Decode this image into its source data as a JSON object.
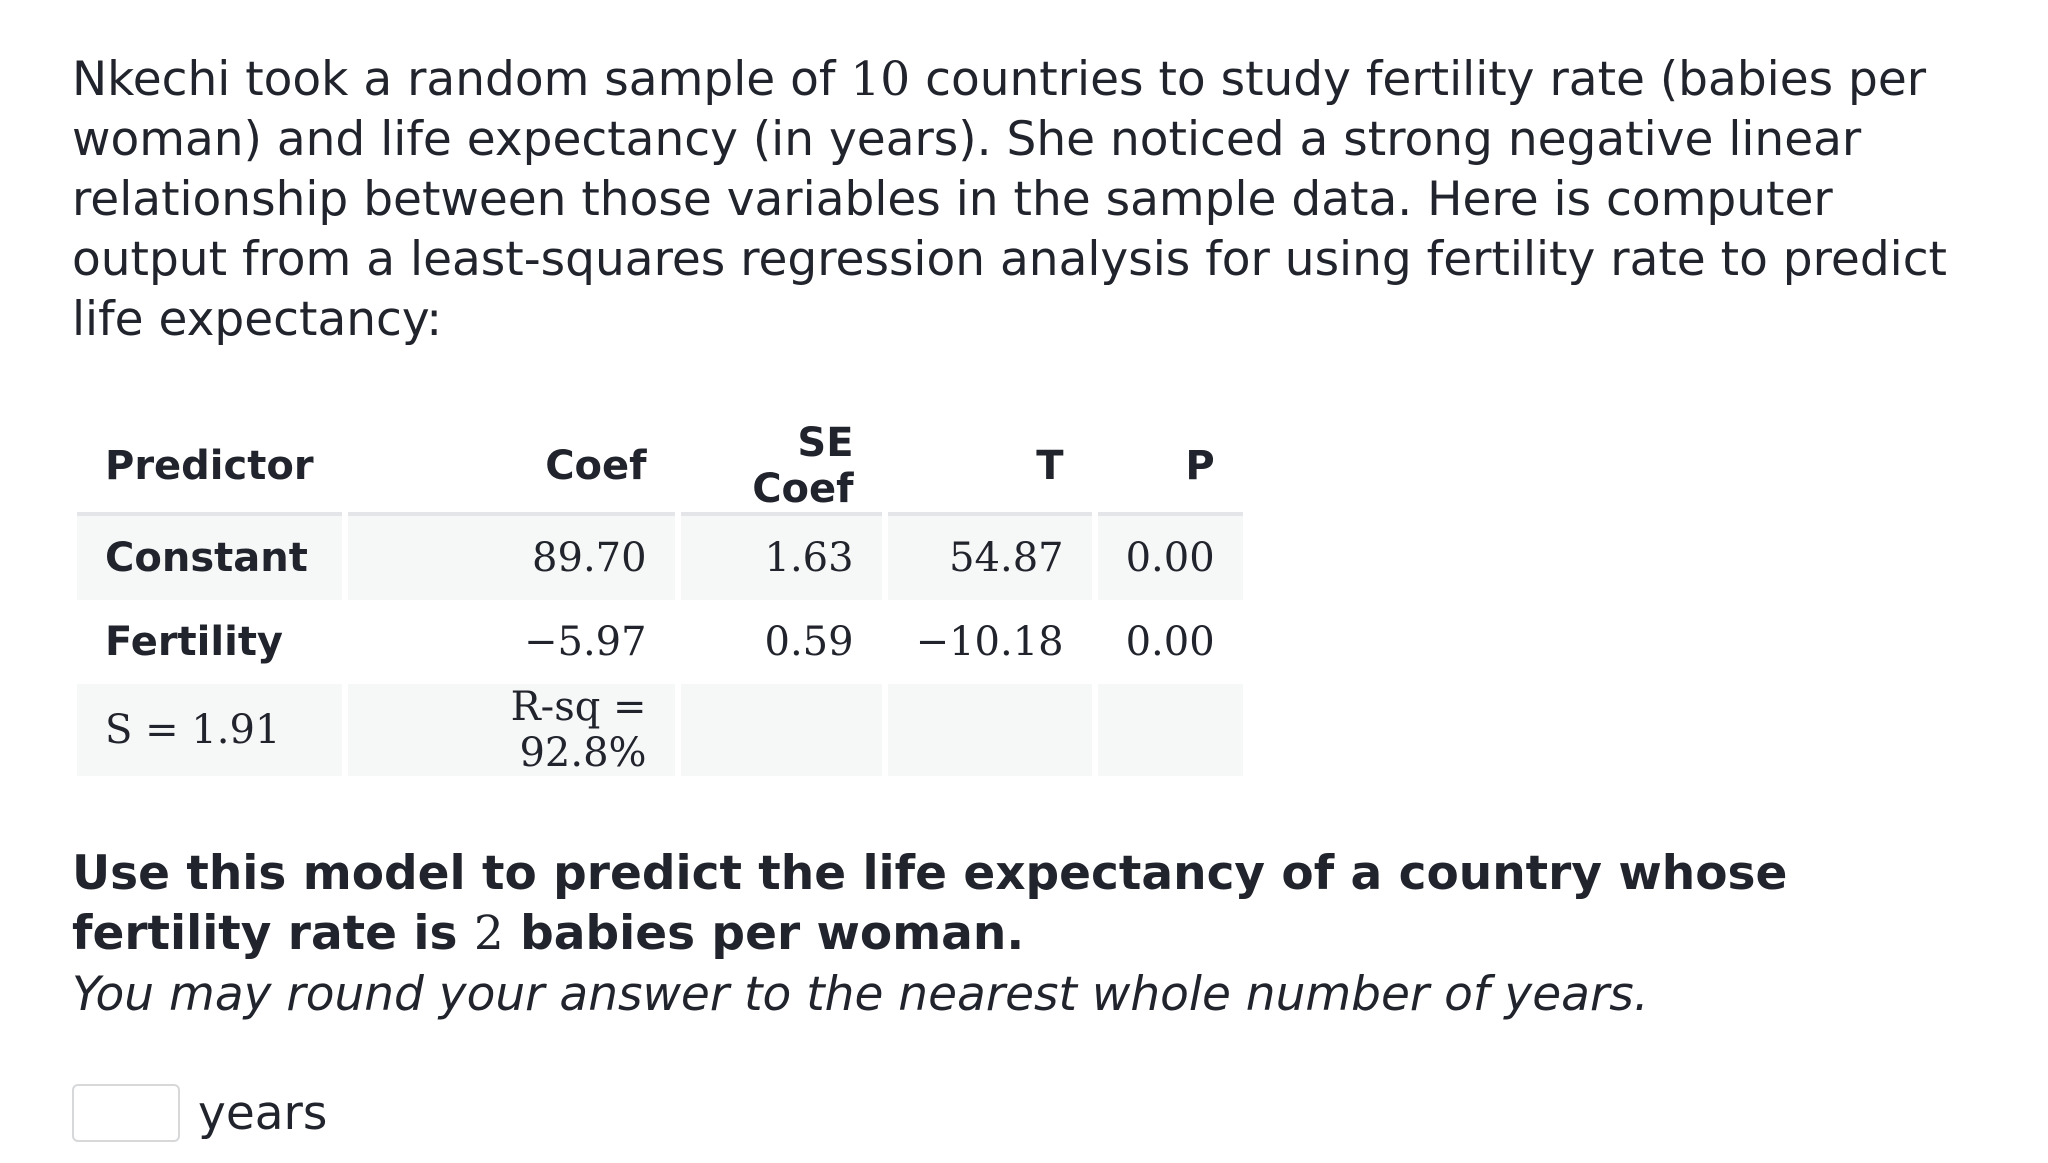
{
  "question": {
    "intro": [
      "Nkechi took a random sample of ",
      "10",
      " countries to study fertility rate (babies per woman) and life expectancy (in years). She noticed a strong negative linear relationship between those variables in the sample data. Here is computer output from a least-squares regression analysis for using fertility rate to predict life expectancy:"
    ],
    "table": {
      "header": [
        "Predictor",
        "Coef",
        "SE Coef",
        "T",
        "P"
      ],
      "rows": [
        [
          "Constant",
          "89.70",
          "1.63",
          "54.87",
          "0.00"
        ],
        [
          "Fertility",
          "−5.97",
          "0.59",
          "−10.18",
          "0.00"
        ]
      ],
      "footer": [
        "S = 1.91",
        "R-sq = 92.8%"
      ]
    },
    "prompt": [
      "Use this model to predict the life expectancy of a country whose fertility rate is ",
      "2",
      " babies per woman."
    ],
    "hint": "You may round your answer to the nearest whole number of years.",
    "unit": "years"
  }
}
